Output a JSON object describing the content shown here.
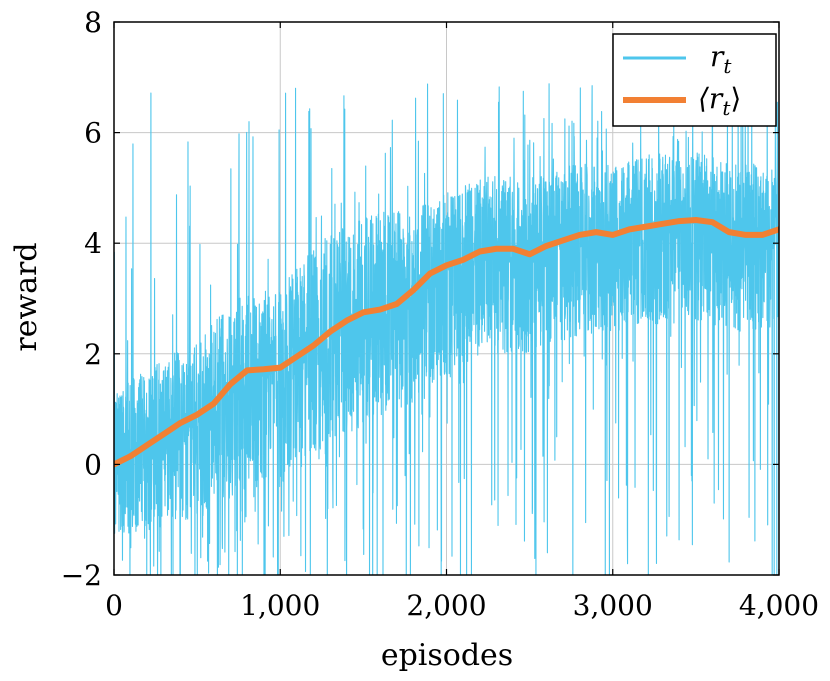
{
  "chart_data": {
    "type": "line",
    "xlabel": "episodes",
    "ylabel": "reward",
    "xlim": [
      0,
      4000
    ],
    "ylim": [
      -2,
      8
    ],
    "x_ticks": [
      0,
      1000,
      2000,
      3000,
      4000
    ],
    "x_tick_labels": [
      "0",
      "1,000",
      "2,000",
      "3,000",
      "4,000"
    ],
    "y_ticks": [
      -2,
      0,
      2,
      4,
      6,
      8
    ],
    "y_tick_labels": [
      "−2",
      "0",
      "2",
      "4",
      "6",
      "8"
    ],
    "grid": true,
    "legend_position": "top-right",
    "colors": {
      "raw": "#4ec6ec",
      "mean": "#f28033"
    },
    "series": [
      {
        "name": "r_t",
        "legend_label": "r",
        "legend_sub": "t",
        "kind": "noisy-raw",
        "band_x": [
          0,
          250,
          500,
          750,
          1000,
          1250,
          1500,
          1750,
          2000,
          2250,
          2500,
          2750,
          3000,
          3250,
          3500,
          3750,
          4000
        ],
        "band_mean": [
          0.1,
          0.5,
          0.95,
          1.7,
          1.8,
          2.3,
          2.75,
          3.0,
          3.6,
          3.9,
          3.85,
          4.15,
          4.2,
          4.35,
          4.45,
          4.15,
          4.25
        ],
        "band_low": [
          -1.3,
          -1.2,
          -1.0,
          -0.5,
          -0.4,
          0.3,
          0.7,
          1.0,
          1.6,
          2.0,
          2.0,
          2.3,
          2.4,
          2.5,
          2.6,
          2.4,
          2.5
        ],
        "band_high": [
          1.5,
          2.0,
          2.5,
          3.2,
          3.4,
          4.3,
          4.7,
          4.9,
          5.1,
          5.4,
          5.4,
          5.6,
          5.6,
          5.8,
          5.8,
          5.6,
          5.7
        ],
        "spike_max": 6.9,
        "spike_min": -2
      },
      {
        "name": "⟨r_t⟩",
        "legend_label": "⟨r",
        "legend_sub": "t",
        "legend_close": "⟩",
        "kind": "moving-average",
        "x": [
          0,
          100,
          200,
          300,
          400,
          500,
          600,
          700,
          800,
          900,
          1000,
          1100,
          1200,
          1300,
          1400,
          1500,
          1600,
          1700,
          1800,
          1900,
          2000,
          2100,
          2200,
          2300,
          2400,
          2500,
          2600,
          2700,
          2800,
          2900,
          3000,
          3100,
          3200,
          3300,
          3400,
          3500,
          3600,
          3700,
          3800,
          3900,
          4000
        ],
        "values": [
          0.0,
          0.15,
          0.35,
          0.55,
          0.75,
          0.9,
          1.1,
          1.45,
          1.7,
          1.72,
          1.75,
          1.95,
          2.15,
          2.4,
          2.6,
          2.75,
          2.8,
          2.9,
          3.15,
          3.45,
          3.6,
          3.7,
          3.85,
          3.9,
          3.9,
          3.8,
          3.95,
          4.05,
          4.15,
          4.2,
          4.15,
          4.25,
          4.3,
          4.35,
          4.4,
          4.42,
          4.38,
          4.2,
          4.15,
          4.15,
          4.25
        ]
      }
    ]
  }
}
